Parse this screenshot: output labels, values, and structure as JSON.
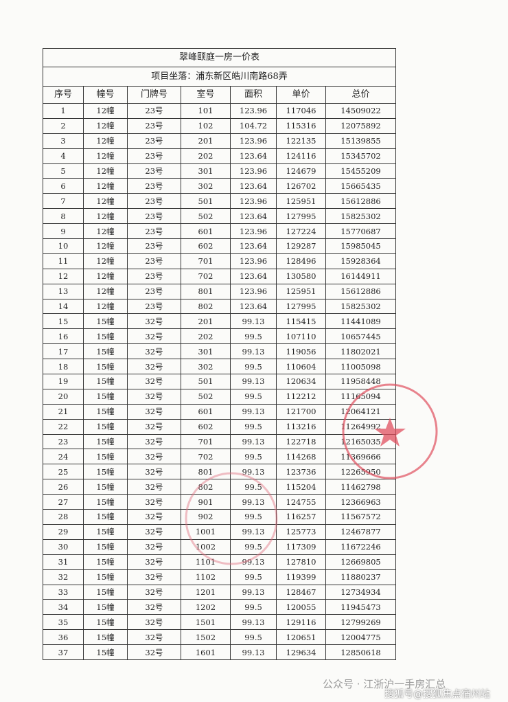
{
  "table": {
    "title": "翠峰颐庭一房一价表",
    "address": "项目坐落：浦东新区皓川南路68弄",
    "header": [
      "序号",
      "幢号",
      "门牌号",
      "室号",
      "面积",
      "单价",
      "总价"
    ],
    "rows": [
      [
        "1",
        "12幢",
        "23号",
        "101",
        "123.96",
        "117046",
        "14509022"
      ],
      [
        "2",
        "12幢",
        "23号",
        "102",
        "104.72",
        "115316",
        "12075892"
      ],
      [
        "3",
        "12幢",
        "23号",
        "201",
        "123.96",
        "122135",
        "15139855"
      ],
      [
        "4",
        "12幢",
        "23号",
        "202",
        "123.64",
        "124116",
        "15345702"
      ],
      [
        "5",
        "12幢",
        "23号",
        "301",
        "123.96",
        "124679",
        "15455209"
      ],
      [
        "6",
        "12幢",
        "23号",
        "302",
        "123.64",
        "126702",
        "15665435"
      ],
      [
        "7",
        "12幢",
        "23号",
        "501",
        "123.96",
        "125951",
        "15612886"
      ],
      [
        "8",
        "12幢",
        "23号",
        "502",
        "123.64",
        "127995",
        "15825302"
      ],
      [
        "9",
        "12幢",
        "23号",
        "601",
        "123.96",
        "127224",
        "15770687"
      ],
      [
        "10",
        "12幢",
        "23号",
        "602",
        "123.64",
        "129287",
        "15985045"
      ],
      [
        "11",
        "12幢",
        "23号",
        "701",
        "123.96",
        "128496",
        "15928364"
      ],
      [
        "12",
        "12幢",
        "23号",
        "702",
        "123.64",
        "130580",
        "16144911"
      ],
      [
        "13",
        "12幢",
        "23号",
        "801",
        "123.96",
        "125951",
        "15612886"
      ],
      [
        "14",
        "12幢",
        "23号",
        "802",
        "123.64",
        "127995",
        "15825302"
      ],
      [
        "15",
        "15幢",
        "32号",
        "201",
        "99.13",
        "115415",
        "11441089"
      ],
      [
        "16",
        "15幢",
        "32号",
        "202",
        "99.5",
        "107110",
        "10657445"
      ],
      [
        "17",
        "15幢",
        "32号",
        "301",
        "99.13",
        "119056",
        "11802021"
      ],
      [
        "18",
        "15幢",
        "32号",
        "302",
        "99.5",
        "110604",
        "11005098"
      ],
      [
        "19",
        "15幢",
        "32号",
        "501",
        "99.13",
        "120634",
        "11958448"
      ],
      [
        "20",
        "15幢",
        "32号",
        "502",
        "99.5",
        "112212",
        "11165094"
      ],
      [
        "21",
        "15幢",
        "32号",
        "601",
        "99.13",
        "121700",
        "12064121"
      ],
      [
        "22",
        "15幢",
        "32号",
        "602",
        "99.5",
        "113216",
        "11264992"
      ],
      [
        "23",
        "15幢",
        "32号",
        "701",
        "99.13",
        "122718",
        "12165035"
      ],
      [
        "24",
        "15幢",
        "32号",
        "702",
        "99.5",
        "114268",
        "11369666"
      ],
      [
        "25",
        "15幢",
        "32号",
        "801",
        "99.13",
        "123736",
        "12265950"
      ],
      [
        "26",
        "15幢",
        "32号",
        "802",
        "99.5",
        "115204",
        "11462798"
      ],
      [
        "27",
        "15幢",
        "32号",
        "901",
        "99.13",
        "124755",
        "12366963"
      ],
      [
        "28",
        "15幢",
        "32号",
        "902",
        "99.5",
        "116257",
        "11567572"
      ],
      [
        "29",
        "15幢",
        "32号",
        "1001",
        "99.13",
        "125773",
        "12467877"
      ],
      [
        "30",
        "15幢",
        "32号",
        "1002",
        "99.5",
        "117309",
        "11672246"
      ],
      [
        "31",
        "15幢",
        "32号",
        "1101",
        "99.13",
        "127810",
        "12669805"
      ],
      [
        "32",
        "15幢",
        "32号",
        "1102",
        "99.5",
        "119399",
        "11880237"
      ],
      [
        "33",
        "15幢",
        "32号",
        "1201",
        "99.13",
        "128467",
        "12734934"
      ],
      [
        "34",
        "15幢",
        "32号",
        "1202",
        "99.5",
        "120055",
        "11945473"
      ],
      [
        "35",
        "15幢",
        "32号",
        "1501",
        "99.13",
        "129116",
        "12799269"
      ],
      [
        "36",
        "15幢",
        "32号",
        "1502",
        "99.5",
        "120651",
        "12004775"
      ],
      [
        "37",
        "15幢",
        "32号",
        "1601",
        "99.13",
        "129634",
        "12850618"
      ]
    ]
  },
  "watermark": {
    "line1": "公众号 · 江浙沪一手房汇总",
    "line2": "搜狐号@搜狐焦点宿州站"
  }
}
